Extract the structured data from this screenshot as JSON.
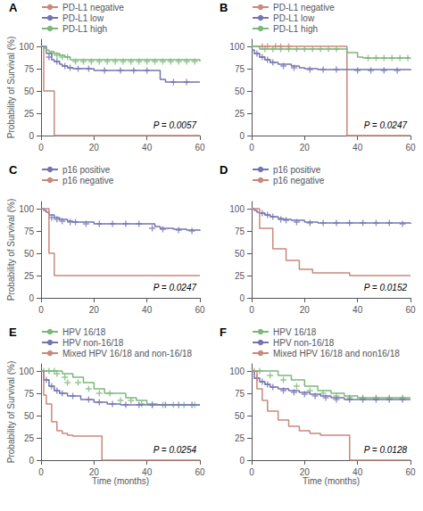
{
  "chart_data": [
    {
      "type": "step",
      "title": "A",
      "annotation": "P = 0.0057",
      "ylabel": "Probability of Survival (%)",
      "xlim": [
        0,
        60
      ],
      "ylim": [
        0,
        108
      ],
      "xticks": [
        0,
        20,
        40,
        60
      ],
      "yticks": [
        0,
        25,
        50,
        75,
        100
      ],
      "grid": false,
      "legend": "top",
      "marker": "plus",
      "series": [
        {
          "name": "PD-L1 negative",
          "color": "#c8897a",
          "x": [
            0,
            1,
            1,
            5,
            5,
            8,
            8,
            60
          ],
          "values": [
            100,
            100,
            50,
            50,
            0,
            0,
            0,
            0
          ],
          "censor_x": [],
          "censor_y": []
        },
        {
          "name": "PD-L1 low",
          "color": "#7474b0",
          "x": [
            0,
            2,
            4,
            5,
            7,
            8,
            10,
            12,
            15,
            20,
            22,
            25,
            28,
            32,
            38,
            42,
            45,
            47,
            60
          ],
          "values": [
            100,
            92,
            85,
            83,
            80,
            78,
            76,
            75,
            75,
            73,
            73,
            73,
            73,
            73,
            73,
            73,
            63,
            60,
            60
          ],
          "censor_x": [
            3,
            6,
            9,
            11,
            14,
            18,
            24,
            30,
            35,
            40,
            50,
            55
          ],
          "censor_y": [
            88,
            83,
            78,
            76,
            75,
            75,
            73,
            73,
            73,
            73,
            60,
            60
          ]
        },
        {
          "name": "PD-L1 high",
          "color": "#7ab87a",
          "x": [
            0,
            1,
            2,
            3,
            5,
            7,
            9,
            11,
            60
          ],
          "values": [
            100,
            98,
            96,
            94,
            92,
            90,
            88,
            85,
            83
          ],
          "censor_x": [
            4,
            6,
            8,
            10,
            13,
            16,
            19,
            22,
            25,
            28,
            31,
            34,
            37,
            40,
            43,
            46,
            49,
            52,
            55,
            58
          ],
          "censor_y": [
            92,
            90,
            88,
            88,
            83,
            83,
            83,
            83,
            83,
            83,
            83,
            83,
            83,
            83,
            83,
            83,
            83,
            83,
            83,
            83
          ]
        }
      ]
    },
    {
      "type": "step",
      "title": "B",
      "annotation": "P = 0.0247",
      "xlim": [
        0,
        60
      ],
      "ylim": [
        0,
        108
      ],
      "xticks": [
        0,
        20,
        40,
        60
      ],
      "yticks": [
        0,
        25,
        50,
        75,
        100
      ],
      "grid": false,
      "legend": "top",
      "marker": "plus",
      "series": [
        {
          "name": "PD-L1 negative",
          "color": "#c8897a",
          "x": [
            0,
            1,
            2,
            3,
            5,
            8,
            10,
            13,
            15,
            36,
            36,
            60
          ],
          "values": [
            100,
            100,
            100,
            100,
            100,
            100,
            100,
            100,
            100,
            100,
            0,
            0
          ],
          "censor_x": [
            4,
            6,
            9,
            11,
            14
          ],
          "censor_y": [
            100,
            100,
            100,
            100,
            100
          ]
        },
        {
          "name": "PD-L1 low",
          "color": "#7474b0",
          "x": [
            0,
            1,
            3,
            5,
            7,
            10,
            15,
            18,
            20,
            25,
            30,
            35,
            37,
            60
          ],
          "values": [
            96,
            92,
            88,
            85,
            82,
            80,
            78,
            76,
            75,
            74,
            74,
            74,
            74,
            73
          ],
          "censor_x": [
            2,
            4,
            6,
            8,
            12,
            16,
            22,
            27,
            32,
            40,
            45,
            50,
            55
          ],
          "censor_y": [
            92,
            88,
            85,
            82,
            78,
            76,
            74,
            74,
            74,
            73,
            73,
            73,
            73
          ]
        },
        {
          "name": "PD-L1 high",
          "color": "#7ab87a",
          "x": [
            0,
            1,
            3,
            36,
            40,
            42,
            60
          ],
          "values": [
            100,
            100,
            97,
            93,
            88,
            87,
            87
          ],
          "censor_x": [
            5,
            8,
            11,
            14,
            17,
            20,
            23,
            26,
            29,
            32,
            44,
            47,
            50,
            53,
            56,
            59
          ],
          "censor_y": [
            97,
            97,
            97,
            97,
            97,
            97,
            97,
            97,
            97,
            97,
            87,
            87,
            87,
            87,
            87,
            87
          ]
        }
      ]
    },
    {
      "type": "step",
      "title": "C",
      "annotation": "P = 0.0247",
      "ylabel": "Probability of Survival (%)",
      "xlim": [
        0,
        60
      ],
      "ylim": [
        0,
        108
      ],
      "xticks": [
        0,
        20,
        40,
        60
      ],
      "yticks": [
        0,
        25,
        50,
        75,
        100
      ],
      "grid": false,
      "legend": "top",
      "marker": "plus",
      "series": [
        {
          "name": "p16 positive",
          "color": "#7474b0",
          "x": [
            0,
            1,
            2,
            3,
            5,
            7,
            10,
            12,
            15,
            20,
            23,
            25,
            28,
            30,
            35,
            40,
            43,
            45,
            48,
            50,
            55,
            60
          ],
          "values": [
            100,
            98,
            96,
            93,
            90,
            88,
            86,
            85,
            85,
            83,
            83,
            83,
            83,
            83,
            83,
            83,
            80,
            78,
            78,
            77,
            76,
            75
          ],
          "censor_x": [
            4,
            6,
            8,
            11,
            13,
            17,
            22,
            27,
            32,
            37,
            42,
            46,
            52,
            57
          ],
          "censor_y": [
            90,
            88,
            86,
            85,
            85,
            83,
            83,
            83,
            83,
            83,
            78,
            77,
            76,
            75
          ]
        },
        {
          "name": "p16 negative",
          "color": "#c8897a",
          "x": [
            0,
            1,
            3,
            5,
            10,
            10,
            12,
            60
          ],
          "values": [
            100,
            100,
            50,
            25,
            25,
            25,
            25,
            25
          ],
          "censor_x": [],
          "censor_y": []
        }
      ]
    },
    {
      "type": "step",
      "title": "D",
      "annotation": "P = 0.0152",
      "xlim": [
        0,
        60
      ],
      "ylim": [
        0,
        108
      ],
      "xticks": [
        0,
        20,
        40,
        60
      ],
      "yticks": [
        0,
        25,
        50,
        75,
        100
      ],
      "grid": false,
      "legend": "top",
      "marker": "plus",
      "series": [
        {
          "name": "p16 positive",
          "color": "#7474b0",
          "x": [
            0,
            1,
            2,
            3,
            5,
            7,
            10,
            12,
            15,
            20,
            25,
            30,
            35,
            40,
            45,
            50,
            55,
            60
          ],
          "values": [
            100,
            98,
            96,
            95,
            93,
            91,
            89,
            88,
            87,
            85,
            84,
            84,
            84,
            84,
            84,
            84,
            84,
            83
          ],
          "censor_x": [
            4,
            6,
            8,
            11,
            13,
            17,
            22,
            27,
            32,
            37,
            42,
            47,
            52,
            57
          ],
          "censor_y": [
            95,
            93,
            91,
            88,
            87,
            85,
            84,
            84,
            84,
            84,
            84,
            84,
            84,
            83
          ]
        },
        {
          "name": "p16 negative",
          "color": "#c8897a",
          "x": [
            0,
            3,
            8,
            13,
            18,
            23,
            28,
            35,
            37,
            60
          ],
          "values": [
            100,
            78,
            55,
            42,
            32,
            28,
            28,
            28,
            25,
            25
          ],
          "censor_x": [],
          "censor_y": []
        }
      ]
    },
    {
      "type": "step",
      "title": "E",
      "annotation": "P = 0.0254",
      "ylabel": "Probability of Survival (%)",
      "xlabel": "Time (months)",
      "xlim": [
        0,
        60
      ],
      "ylim": [
        0,
        108
      ],
      "xticks": [
        0,
        20,
        40,
        60
      ],
      "yticks": [
        0,
        25,
        50,
        75,
        100
      ],
      "grid": false,
      "legend": "top",
      "marker": "plus",
      "series": [
        {
          "name": "HPV 16/18",
          "color": "#7ab87a",
          "x": [
            0,
            2,
            4,
            8,
            12,
            16,
            20,
            24,
            28,
            32,
            36,
            40,
            44,
            48,
            52,
            56,
            60
          ],
          "values": [
            100,
            100,
            100,
            97,
            93,
            87,
            80,
            75,
            75,
            70,
            67,
            63,
            62,
            62,
            62,
            62,
            62
          ],
          "censor_x": [
            1,
            3,
            5,
            6,
            9,
            10,
            14,
            18,
            22,
            26,
            30,
            34,
            38,
            42,
            46,
            50,
            54,
            58
          ],
          "censor_y": [
            100,
            100,
            100,
            97,
            93,
            87,
            87,
            80,
            75,
            75,
            67,
            67,
            63,
            62,
            62,
            62,
            62,
            62
          ]
        },
        {
          "name": "HPV non-16/18",
          "color": "#7474b0",
          "x": [
            0,
            1,
            3,
            5,
            7,
            10,
            15,
            20,
            25,
            30,
            35,
            40,
            45,
            50,
            55,
            60
          ],
          "values": [
            100,
            90,
            83,
            78,
            75,
            72,
            68,
            65,
            63,
            62,
            62,
            62,
            62,
            62,
            62,
            62
          ],
          "censor_x": [
            2,
            4,
            6,
            8,
            12,
            18,
            22,
            27,
            32,
            37,
            42,
            47,
            52,
            57
          ],
          "censor_y": [
            90,
            83,
            78,
            75,
            72,
            68,
            65,
            63,
            62,
            62,
            62,
            62,
            62,
            62
          ]
        },
        {
          "name": "Mixed HPV 16/18 and non-16/18",
          "color": "#c8897a",
          "x": [
            0,
            1,
            2,
            4,
            6,
            8,
            10,
            12,
            23,
            23,
            60
          ],
          "values": [
            100,
            73,
            63,
            43,
            33,
            30,
            28,
            27,
            0,
            0,
            0
          ],
          "censor_x": [],
          "censor_y": []
        }
      ]
    },
    {
      "type": "step",
      "title": "F",
      "annotation": "P = 0.0128",
      "xlabel": "Time (months)",
      "xlim": [
        0,
        60
      ],
      "ylim": [
        0,
        108
      ],
      "xticks": [
        0,
        20,
        40,
        60
      ],
      "yticks": [
        0,
        25,
        50,
        75,
        100
      ],
      "grid": false,
      "legend": "top",
      "marker": "plus",
      "series": [
        {
          "name": "HPV 16/18",
          "color": "#7ab87a",
          "x": [
            0,
            2,
            5,
            10,
            15,
            20,
            25,
            30,
            35,
            40,
            45,
            50,
            55,
            60
          ],
          "values": [
            100,
            100,
            100,
            95,
            90,
            83,
            78,
            75,
            72,
            70,
            70,
            70,
            70,
            70
          ],
          "censor_x": [
            1,
            3,
            7,
            12,
            17,
            22,
            27,
            32,
            37,
            42,
            47,
            52,
            57
          ],
          "censor_y": [
            100,
            100,
            95,
            90,
            83,
            78,
            75,
            72,
            70,
            70,
            70,
            70,
            70
          ]
        },
        {
          "name": "HPV non-16/18",
          "color": "#7474b0",
          "x": [
            0,
            1,
            3,
            5,
            7,
            10,
            14,
            18,
            22,
            26,
            30,
            35,
            40,
            45,
            50,
            55,
            60
          ],
          "values": [
            100,
            92,
            88,
            85,
            82,
            80,
            78,
            76,
            74,
            72,
            70,
            68,
            68,
            68,
            68,
            68,
            68
          ],
          "censor_x": [
            2,
            4,
            6,
            8,
            12,
            16,
            20,
            24,
            28,
            32,
            37,
            42,
            47,
            52,
            57
          ],
          "censor_y": [
            92,
            88,
            85,
            82,
            78,
            76,
            74,
            72,
            70,
            68,
            68,
            68,
            68,
            68,
            68
          ]
        },
        {
          "name": "Mixed HPV 16/18 and non16/18",
          "color": "#c8897a",
          "x": [
            0,
            2,
            4,
            6,
            10,
            14,
            18,
            22,
            26,
            37,
            37,
            60
          ],
          "values": [
            100,
            80,
            67,
            55,
            45,
            38,
            33,
            30,
            28,
            28,
            0,
            0
          ],
          "censor_x": [],
          "censor_y": []
        }
      ]
    }
  ]
}
